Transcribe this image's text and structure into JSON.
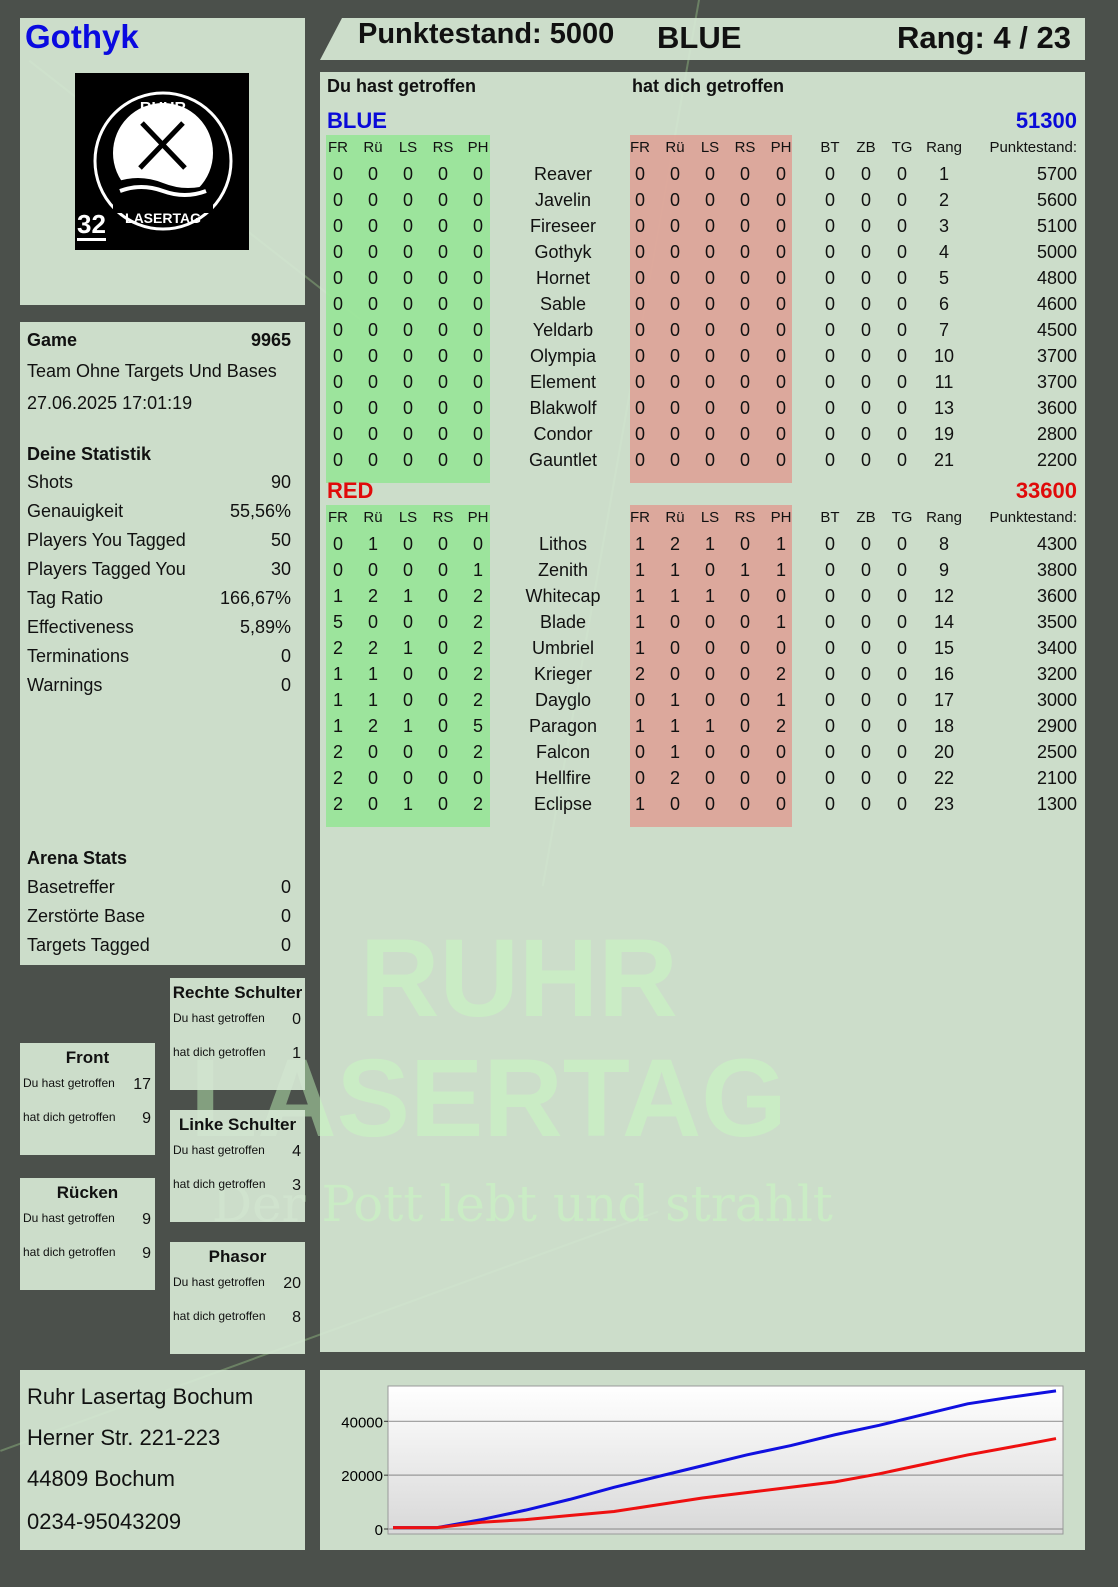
{
  "player": {
    "name": "Gothyk",
    "badge_number": "32",
    "logo_text": [
      "RUHR",
      "LASERTAG"
    ]
  },
  "header": {
    "score_label": "Punktestand: 5000",
    "team": "BLUE",
    "rank_label": "Rang: 4 / 23"
  },
  "game": {
    "label": "Game",
    "number": "9965",
    "mode": "Team Ohne Targets Und Bases",
    "datetime": "27.06.2025 17:01:19"
  },
  "stats": {
    "title": "Deine Statistik",
    "rows": [
      {
        "label": "Shots",
        "value": "90"
      },
      {
        "label": "Genauigkeit",
        "value": "55,56%"
      },
      {
        "label": "Players You Tagged",
        "value": "50"
      },
      {
        "label": "Players Tagged You",
        "value": "30"
      },
      {
        "label": "Tag Ratio",
        "value": "166,67%"
      },
      {
        "label": "Effectiveness",
        "value": "5,89%"
      },
      {
        "label": "Terminations",
        "value": "0"
      },
      {
        "label": "Warnings",
        "value": "0"
      }
    ]
  },
  "arena": {
    "title": "Arena Stats",
    "rows": [
      {
        "label": "Basetreffer",
        "value": "0"
      },
      {
        "label": "Zerstörte Base",
        "value": "0"
      },
      {
        "label": "Targets Tagged",
        "value": "0"
      }
    ]
  },
  "zones": [
    {
      "title": "Rechte Schulter",
      "hit_label": "Du hast getroffen",
      "hit": "0",
      "got_label": "hat dich getroffen",
      "got": "1"
    },
    {
      "title": "Front",
      "hit_label": "Du hast getroffen",
      "hit": "17",
      "got_label": "hat dich getroffen",
      "got": "9"
    },
    {
      "title": "Linke Schulter",
      "hit_label": "Du hast getroffen",
      "hit": "4",
      "got_label": "hat dich getroffen",
      "got": "3"
    },
    {
      "title": "Rücken",
      "hit_label": "Du hast getroffen",
      "hit": "9",
      "got_label": "hat dich getroffen",
      "got": "9"
    },
    {
      "title": "Phasor",
      "hit_label": "Du hast getroffen",
      "hit": "20",
      "got_label": "hat dich getroffen",
      "got": "8"
    }
  ],
  "address": [
    "Ruhr Lasertag Bochum",
    "Herner Str. 221-223",
    "44809 Bochum",
    "0234-95043209"
  ],
  "watermark": {
    "line1": "RUHR",
    "line2": "LASERTAG",
    "slogan": "Der Pott lebt und strahlt"
  },
  "table": {
    "you_hit_label": "Du hast getroffen",
    "hit_you_label": "hat dich getroffen",
    "hit_columns": [
      "FR",
      "Rü",
      "LS",
      "RS",
      "PH"
    ],
    "extra_columns": [
      "BT",
      "ZB",
      "TG",
      "Rang"
    ],
    "score_column": "Punktestand:",
    "teams": [
      {
        "name": "BLUE",
        "total": "51300",
        "color": "#0a0ad8",
        "players": [
          {
            "name": "Reaver",
            "hit": [
              "0",
              "0",
              "0",
              "0",
              "0"
            ],
            "got": [
              "0",
              "0",
              "0",
              "0",
              "0"
            ],
            "extra": [
              "0",
              "0",
              "0",
              "1"
            ],
            "score": "5700"
          },
          {
            "name": "Javelin",
            "hit": [
              "0",
              "0",
              "0",
              "0",
              "0"
            ],
            "got": [
              "0",
              "0",
              "0",
              "0",
              "0"
            ],
            "extra": [
              "0",
              "0",
              "0",
              "2"
            ],
            "score": "5600"
          },
          {
            "name": "Fireseer",
            "hit": [
              "0",
              "0",
              "0",
              "0",
              "0"
            ],
            "got": [
              "0",
              "0",
              "0",
              "0",
              "0"
            ],
            "extra": [
              "0",
              "0",
              "0",
              "3"
            ],
            "score": "5100"
          },
          {
            "name": "Gothyk",
            "hit": [
              "0",
              "0",
              "0",
              "0",
              "0"
            ],
            "got": [
              "0",
              "0",
              "0",
              "0",
              "0"
            ],
            "extra": [
              "0",
              "0",
              "0",
              "4"
            ],
            "score": "5000"
          },
          {
            "name": "Hornet",
            "hit": [
              "0",
              "0",
              "0",
              "0",
              "0"
            ],
            "got": [
              "0",
              "0",
              "0",
              "0",
              "0"
            ],
            "extra": [
              "0",
              "0",
              "0",
              "5"
            ],
            "score": "4800"
          },
          {
            "name": "Sable",
            "hit": [
              "0",
              "0",
              "0",
              "0",
              "0"
            ],
            "got": [
              "0",
              "0",
              "0",
              "0",
              "0"
            ],
            "extra": [
              "0",
              "0",
              "0",
              "6"
            ],
            "score": "4600"
          },
          {
            "name": "Yeldarb",
            "hit": [
              "0",
              "0",
              "0",
              "0",
              "0"
            ],
            "got": [
              "0",
              "0",
              "0",
              "0",
              "0"
            ],
            "extra": [
              "0",
              "0",
              "0",
              "7"
            ],
            "score": "4500"
          },
          {
            "name": "Olympia",
            "hit": [
              "0",
              "0",
              "0",
              "0",
              "0"
            ],
            "got": [
              "0",
              "0",
              "0",
              "0",
              "0"
            ],
            "extra": [
              "0",
              "0",
              "0",
              "10"
            ],
            "score": "3700"
          },
          {
            "name": "Element",
            "hit": [
              "0",
              "0",
              "0",
              "0",
              "0"
            ],
            "got": [
              "0",
              "0",
              "0",
              "0",
              "0"
            ],
            "extra": [
              "0",
              "0",
              "0",
              "11"
            ],
            "score": "3700"
          },
          {
            "name": "Blakwolf",
            "hit": [
              "0",
              "0",
              "0",
              "0",
              "0"
            ],
            "got": [
              "0",
              "0",
              "0",
              "0",
              "0"
            ],
            "extra": [
              "0",
              "0",
              "0",
              "13"
            ],
            "score": "3600"
          },
          {
            "name": "Condor",
            "hit": [
              "0",
              "0",
              "0",
              "0",
              "0"
            ],
            "got": [
              "0",
              "0",
              "0",
              "0",
              "0"
            ],
            "extra": [
              "0",
              "0",
              "0",
              "19"
            ],
            "score": "2800"
          },
          {
            "name": "Gauntlet",
            "hit": [
              "0",
              "0",
              "0",
              "0",
              "0"
            ],
            "got": [
              "0",
              "0",
              "0",
              "0",
              "0"
            ],
            "extra": [
              "0",
              "0",
              "0",
              "21"
            ],
            "score": "2200"
          }
        ]
      },
      {
        "name": "RED",
        "total": "33600",
        "color": "#e00a0a",
        "players": [
          {
            "name": "Lithos",
            "hit": [
              "0",
              "1",
              "0",
              "0",
              "0"
            ],
            "got": [
              "1",
              "2",
              "1",
              "0",
              "1"
            ],
            "extra": [
              "0",
              "0",
              "0",
              "8"
            ],
            "score": "4300"
          },
          {
            "name": "Zenith",
            "hit": [
              "0",
              "0",
              "0",
              "0",
              "1"
            ],
            "got": [
              "1",
              "1",
              "0",
              "1",
              "1"
            ],
            "extra": [
              "0",
              "0",
              "0",
              "9"
            ],
            "score": "3800"
          },
          {
            "name": "Whitecap",
            "hit": [
              "1",
              "2",
              "1",
              "0",
              "2"
            ],
            "got": [
              "1",
              "1",
              "1",
              "0",
              "0"
            ],
            "extra": [
              "0",
              "0",
              "0",
              "12"
            ],
            "score": "3600"
          },
          {
            "name": "Blade",
            "hit": [
              "5",
              "0",
              "0",
              "0",
              "2"
            ],
            "got": [
              "1",
              "0",
              "0",
              "0",
              "1"
            ],
            "extra": [
              "0",
              "0",
              "0",
              "14"
            ],
            "score": "3500"
          },
          {
            "name": "Umbriel",
            "hit": [
              "2",
              "2",
              "1",
              "0",
              "2"
            ],
            "got": [
              "1",
              "0",
              "0",
              "0",
              "0"
            ],
            "extra": [
              "0",
              "0",
              "0",
              "15"
            ],
            "score": "3400"
          },
          {
            "name": "Krieger",
            "hit": [
              "1",
              "1",
              "0",
              "0",
              "2"
            ],
            "got": [
              "2",
              "0",
              "0",
              "0",
              "2"
            ],
            "extra": [
              "0",
              "0",
              "0",
              "16"
            ],
            "score": "3200"
          },
          {
            "name": "Dayglo",
            "hit": [
              "1",
              "1",
              "0",
              "0",
              "2"
            ],
            "got": [
              "0",
              "1",
              "0",
              "0",
              "1"
            ],
            "extra": [
              "0",
              "0",
              "0",
              "17"
            ],
            "score": "3000"
          },
          {
            "name": "Paragon",
            "hit": [
              "1",
              "2",
              "1",
              "0",
              "5"
            ],
            "got": [
              "1",
              "1",
              "1",
              "0",
              "2"
            ],
            "extra": [
              "0",
              "0",
              "0",
              "18"
            ],
            "score": "2900"
          },
          {
            "name": "Falcon",
            "hit": [
              "2",
              "0",
              "0",
              "0",
              "2"
            ],
            "got": [
              "0",
              "1",
              "0",
              "0",
              "0"
            ],
            "extra": [
              "0",
              "0",
              "0",
              "20"
            ],
            "score": "2500"
          },
          {
            "name": "Hellfire",
            "hit": [
              "2",
              "0",
              "0",
              "0",
              "0"
            ],
            "got": [
              "0",
              "2",
              "0",
              "0",
              "0"
            ],
            "extra": [
              "0",
              "0",
              "0",
              "22"
            ],
            "score": "2100"
          },
          {
            "name": "Eclipse",
            "hit": [
              "2",
              "0",
              "1",
              "0",
              "2"
            ],
            "got": [
              "1",
              "0",
              "0",
              "0",
              "0"
            ],
            "extra": [
              "0",
              "0",
              "0",
              "23"
            ],
            "score": "1300"
          }
        ]
      }
    ]
  },
  "chart_data": {
    "type": "line",
    "yticks": [
      "0",
      "20000",
      "40000"
    ],
    "ylim": [
      0,
      52000
    ],
    "grid": true,
    "series": [
      {
        "color": "#1010e0",
        "values": [
          500,
          500,
          3500,
          7000,
          11000,
          15500,
          19500,
          23500,
          27500,
          31000,
          35000,
          38500,
          42500,
          46500,
          49000,
          51300
        ]
      },
      {
        "color": "#ee1010",
        "values": [
          500,
          500,
          2500,
          3500,
          5000,
          6500,
          9000,
          11500,
          13500,
          15500,
          17500,
          20500,
          24000,
          27500,
          30500,
          33600
        ]
      }
    ]
  }
}
